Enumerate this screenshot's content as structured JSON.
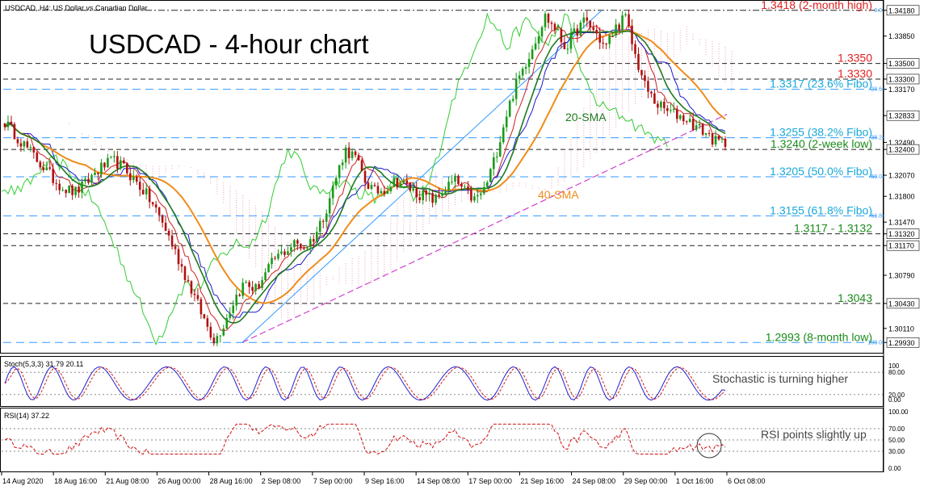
{
  "header": {
    "symbol_label": "USDCAD, H4:  US Dollar vs Canadian Dollar",
    "title": "USDCAD - 4-hour chart"
  },
  "price_axis": {
    "ticks": [
      "1.34180",
      "1.33850",
      "1.33500",
      "1.33300",
      "1.33170",
      "1.32833",
      "1.32490",
      "1.32400",
      "1.32070",
      "1.31800",
      "1.31470",
      "1.31320",
      "1.31170",
      "1.30790",
      "1.30430",
      "1.30110",
      "1.29930"
    ],
    "highlighted": [
      "1.34180",
      "1.33500",
      "1.33300",
      "1.32833",
      "1.32400",
      "1.31320",
      "1.31170",
      "1.30430",
      "1.29930"
    ]
  },
  "levels": [
    {
      "label": "1.3418 (2-month high)",
      "value": 1.3418,
      "color": "#e02020",
      "style": "dashdot"
    },
    {
      "label": "1.3350",
      "value": 1.335,
      "color": "#e02020",
      "style": "dash"
    },
    {
      "label": "1.3330",
      "value": 1.333,
      "color": "#e02020",
      "style": "dash"
    },
    {
      "label": "1.3317 (23.6% Fibo)",
      "value": 1.3317,
      "color": "#18a8d8",
      "style": "fibo",
      "pct": "23.6"
    },
    {
      "label": "1.3255 (38.2% Fibo)",
      "value": 1.3255,
      "color": "#18a8d8",
      "style": "fibo",
      "pct": "38.2"
    },
    {
      "label": "1.3240 (2-week low)",
      "value": 1.324,
      "color": "#1a8a1a",
      "style": "dash"
    },
    {
      "label": "1.3205 (50.0% Fibo)",
      "value": 1.3205,
      "color": "#18a8d8",
      "style": "fibo",
      "pct": "50.0"
    },
    {
      "label": "1.3155 (61.8% Fibo)",
      "value": 1.3155,
      "color": "#18a8d8",
      "style": "fibo",
      "pct": "61.8"
    },
    {
      "label": "1.3117 - 1.3132",
      "value": 1.3132,
      "value2": 1.3117,
      "color": "#1a8a1a",
      "style": "dash"
    },
    {
      "label": "1.3043",
      "value": 1.3043,
      "color": "#1a8a1a",
      "style": "dash"
    },
    {
      "label": "1.2993 (8-month low)",
      "value": 1.2993,
      "color": "#1a8a1a",
      "style": "fibo",
      "pct": "100.0"
    }
  ],
  "fibo_top_pct": "0.0",
  "annotations": {
    "sma20": "20-SMA",
    "sma40": "40-SMA",
    "stoch_note": "Stochastic is turning higher",
    "rsi_note": "RSI points slightly up"
  },
  "stoch": {
    "label": "Stoch(5,3,3) 31.79 20.11",
    "ticks": [
      "100",
      "80.00",
      "20.00",
      "0.00"
    ]
  },
  "rsi": {
    "label": "RSI(14) 37.22",
    "ticks": [
      "100.00",
      "70.00",
      "50.00",
      "30.00",
      "0.00"
    ]
  },
  "time_axis": [
    "14 Aug 2020",
    "18 Aug 16:00",
    "21 Aug 08:00",
    "26 Aug 00:00",
    "28 Aug 16:00",
    "2 Sep 08:00",
    "7 Sep 00:00",
    "9 Sep 16:00",
    "14 Sep 08:00",
    "17 Sep 00:00",
    "21 Sep 16:00",
    "24 Sep 08:00",
    "29 Sep 00:00",
    "1 Oct 16:00",
    "6 Oct 08:00"
  ],
  "colors": {
    "bull": "#1a9a1a",
    "bear": "#b01010",
    "sma20": "#1f7a1f",
    "sma40": "#ef8c1a",
    "kijun": "#1a1acc",
    "tenkan": "#cc2020",
    "chikou": "#33cc33",
    "cloud": "#e88aa6",
    "trend_blue": "#3399ff",
    "trend_magenta": "#d040d0",
    "stoch_main": "#2020cc",
    "stoch_signal": "#d02020",
    "rsi": "#d01010"
  },
  "chart_data": {
    "type": "candlestick",
    "y_range": [
      1.2985,
      1.3425
    ],
    "price_path": [
      1.3275,
      1.326,
      1.3245,
      1.323,
      1.3215,
      1.32,
      1.319,
      1.3185,
      1.3195,
      1.321,
      1.322,
      1.3225,
      1.3215,
      1.32,
      1.3185,
      1.3165,
      1.314,
      1.311,
      1.308,
      1.305,
      1.302,
      1.2995,
      1.302,
      1.305,
      1.307,
      1.306,
      1.308,
      1.31,
      1.311,
      1.312,
      1.3115,
      1.313,
      1.316,
      1.32,
      1.324,
      1.323,
      1.32,
      1.3185,
      1.319,
      1.32,
      1.3195,
      1.3185,
      1.318,
      1.3175,
      1.319,
      1.32,
      1.3185,
      1.3175,
      1.319,
      1.323,
      1.328,
      1.332,
      1.335,
      1.338,
      1.341,
      1.3395,
      1.337,
      1.339,
      1.3405,
      1.339,
      1.337,
      1.3395,
      1.341,
      1.336,
      1.332,
      1.33,
      1.329,
      1.3285,
      1.328,
      1.327,
      1.3262,
      1.325,
      1.3248
    ]
  }
}
